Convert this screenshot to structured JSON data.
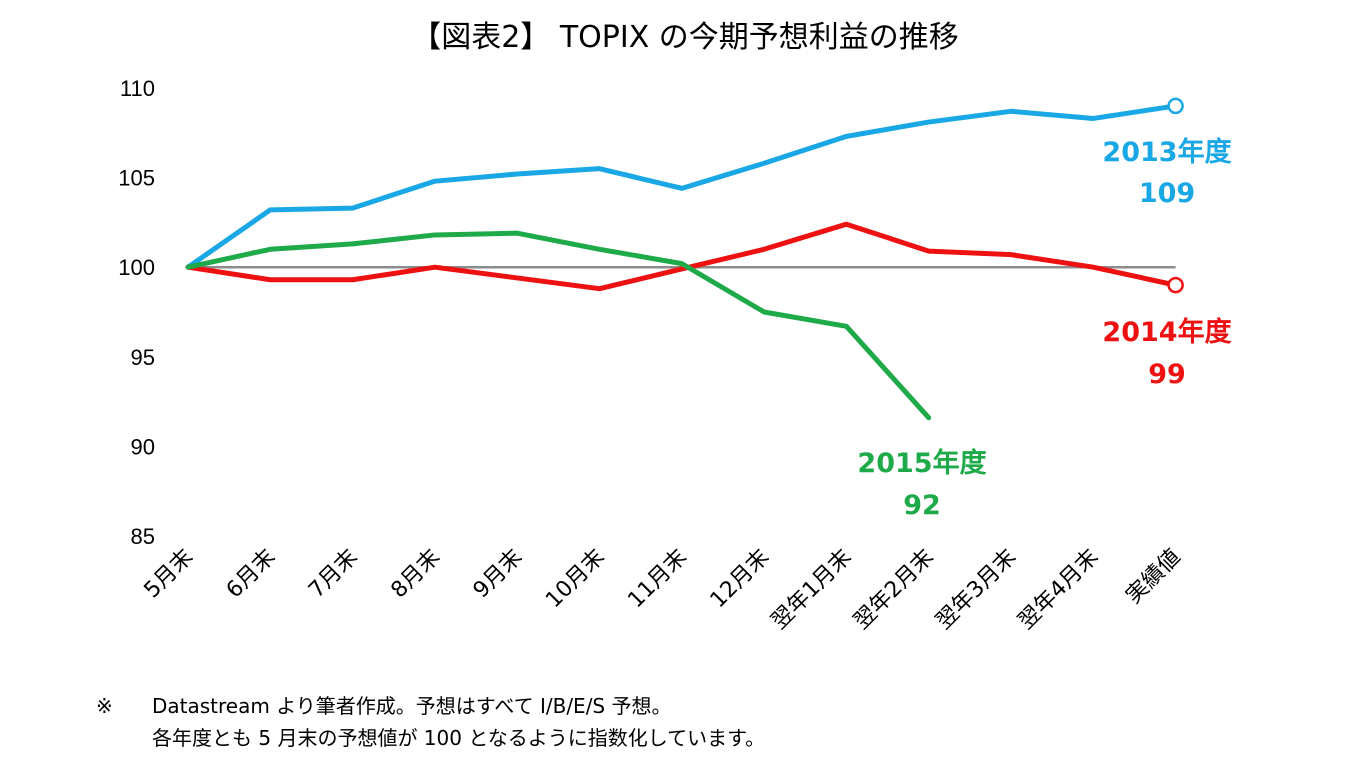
{
  "chart_data": {
    "type": "line",
    "title": "【図表2】 TOPIX の今期予想利益の推移",
    "categories": [
      "5月末",
      "6月末",
      "7月末",
      "8月末",
      "9月末",
      "10月末",
      "11月末",
      "12月末",
      "翌年1月末",
      "翌年2月末",
      "翌年3月末",
      "翌年4月末",
      "実績値"
    ],
    "ylim": [
      85,
      110
    ],
    "yticks": [
      110,
      105,
      100,
      95,
      90,
      85
    ],
    "reference_line": 100,
    "grid": false,
    "legend": "none",
    "series": [
      {
        "name": "2013年度",
        "end_value_label": "109",
        "color": "#1aa7e6",
        "values": [
          100,
          103.2,
          103.3,
          104.8,
          105.2,
          105.5,
          104.4,
          105.8,
          107.3,
          108.1,
          108.7,
          108.3,
          109.0
        ]
      },
      {
        "name": "2014年度",
        "end_value_label": "99",
        "color": "#ee1111",
        "values": [
          100,
          99.3,
          99.3,
          100.0,
          99.4,
          98.8,
          99.9,
          101.0,
          102.4,
          100.9,
          100.7,
          100.0,
          99.0
        ]
      },
      {
        "name": "2015年度",
        "end_value_label": "92",
        "color": "#1faa4a",
        "values": [
          100,
          101.0,
          101.3,
          101.8,
          101.9,
          101.0,
          100.2,
          97.5,
          96.7,
          91.6,
          null,
          null,
          null
        ]
      }
    ]
  },
  "notes": {
    "mark": "※",
    "line1": "Datastream より筆者作成。予想はすべて I/B/E/S 予想。",
    "line2": "各年度とも 5 月末の予想値が 100 となるように指数化しています。"
  }
}
